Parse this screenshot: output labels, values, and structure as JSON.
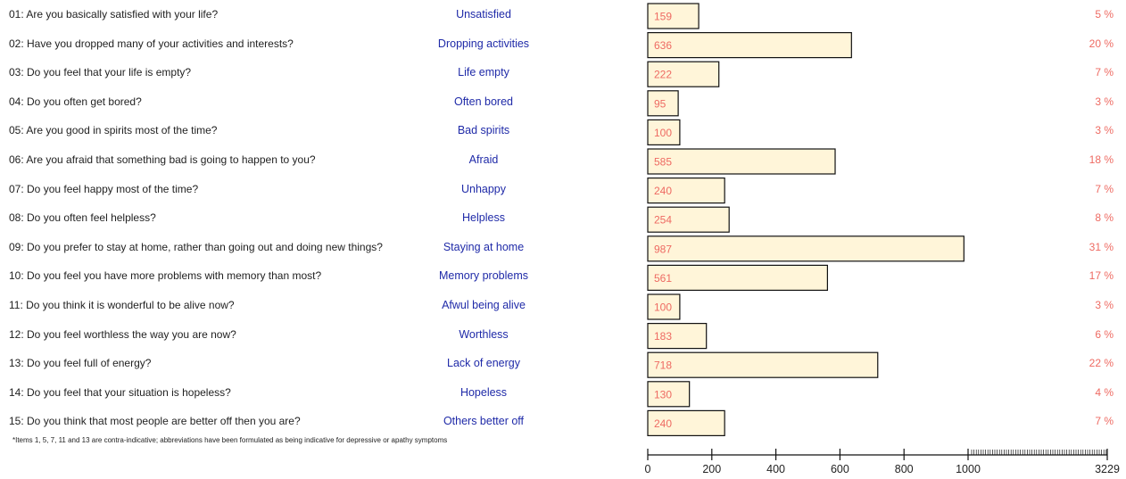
{
  "chart_data": {
    "type": "bar",
    "orientation": "horizontal",
    "categories": [
      "Unsatisfied",
      "Dropping activities",
      "Life empty",
      "Often bored",
      "Bad spirits",
      "Afraid",
      "Unhappy",
      "Helpless",
      "Staying at home",
      "Memory problems",
      "Afwul being alive",
      "Worthless",
      "Lack of energy",
      "Hopeless",
      "Others better off"
    ],
    "questions": [
      "01: Are you basically satisfied with your life?",
      "02: Have you dropped many of your activities and interests?",
      "03: Do you feel that your life is empty?",
      "04: Do you often get bored?",
      "05: Are you good in spirits most of the time?",
      "06: Are you afraid that something bad is going to happen to you?",
      "07: Do you feel happy most of the time?",
      "08: Do you often feel helpless?",
      "09: Do you prefer to stay at home, rather than going out and doing new things?",
      "10: Do you feel you have more problems with memory than most?",
      "11: Do you think it is wonderful to be alive now?",
      "12: Do you feel worthless the way you are now?",
      "13: Do you feel full of energy?",
      "14: Do you feel that your situation is hopeless?",
      "15: Do you think that most people are better off then you are?"
    ],
    "values": [
      159,
      636,
      222,
      95,
      100,
      585,
      240,
      254,
      987,
      561,
      100,
      183,
      718,
      130,
      240
    ],
    "percentages": [
      "5 %",
      "20 %",
      "7 %",
      "3 %",
      "3 %",
      "18 %",
      "7 %",
      "8 %",
      "31 %",
      "17 %",
      "3 %",
      "6 %",
      "22 %",
      "4 %",
      "7 %"
    ],
    "x_ticks": [
      0,
      200,
      400,
      600,
      800,
      1000
    ],
    "x_max_label": "3229",
    "x_max": 3229,
    "x_linear_limit": 1000,
    "colors": {
      "bar_fill": "#fff5d9",
      "bar_stroke": "#111111",
      "value_text": "#ee6a62",
      "abbreviation_text": "#1f2aa8"
    },
    "footnote": "*Items 1, 5, 7, 11 and 13 are contra-indicative; abbreviations have been formulated as being indicative for depressive or apathy symptoms"
  }
}
